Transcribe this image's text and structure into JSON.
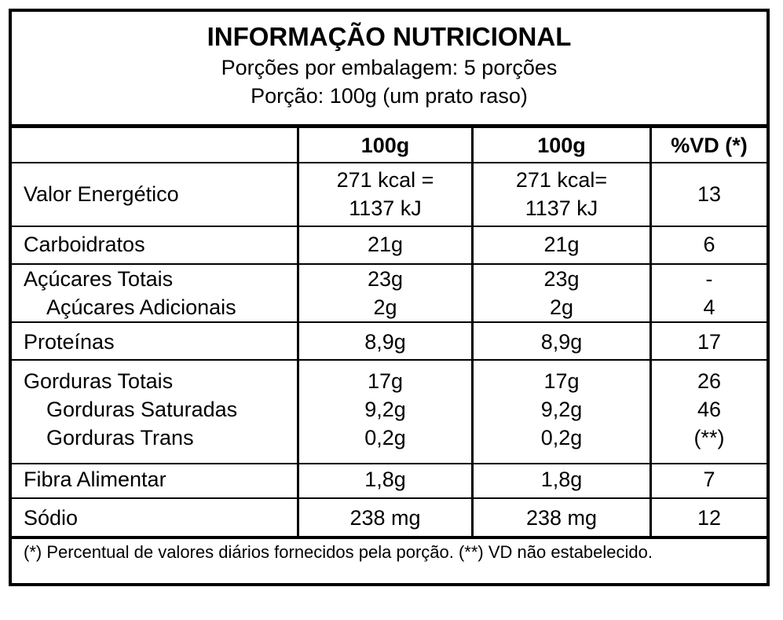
{
  "header": {
    "title": "INFORMAÇÃO NUTRICIONAL",
    "servings_per_package": "Porções por embalagem: 5 porções",
    "serving_size": "Porção: 100g (um prato raso)"
  },
  "columns": [
    "100g",
    "100g",
    "%VD (*)"
  ],
  "rows": [
    {
      "name": "Valor Energético",
      "col1": [
        "271 kcal =",
        "1137 kJ"
      ],
      "col2": [
        "271 kcal=",
        "1137 kJ"
      ],
      "vd": "13"
    },
    {
      "name": "Carboidratos",
      "col1": "21g",
      "col2": "21g",
      "vd": "6"
    },
    {
      "name": "Açúcares Totais",
      "col1": "23g",
      "col2": "23g",
      "vd": "-"
    },
    {
      "name": "Açúcares Adicionais",
      "col1": "2g",
      "col2": "2g",
      "vd": "4"
    },
    {
      "name": "Proteínas",
      "col1": "8,9g",
      "col2": "8,9g",
      "vd": "17"
    },
    {
      "name": "Gorduras Totais",
      "col1": "17g",
      "col2": "17g",
      "vd": "26"
    },
    {
      "name": "Gorduras Saturadas",
      "col1": "9,2g",
      "col2": "9,2g",
      "vd": "46"
    },
    {
      "name": "Gorduras Trans",
      "col1": "0,2g",
      "col2": "0,2g",
      "vd": "(**)"
    },
    {
      "name": "Fibra Alimentar",
      "col1": "1,8g",
      "col2": "1,8g",
      "vd": "7"
    },
    {
      "name": "Sódio",
      "col1": "238 mg",
      "col2": "238 mg",
      "vd": "12"
    }
  ],
  "footnote": "(*) Percentual de valores diários fornecidos pela porção. (**) VD não estabelecido."
}
